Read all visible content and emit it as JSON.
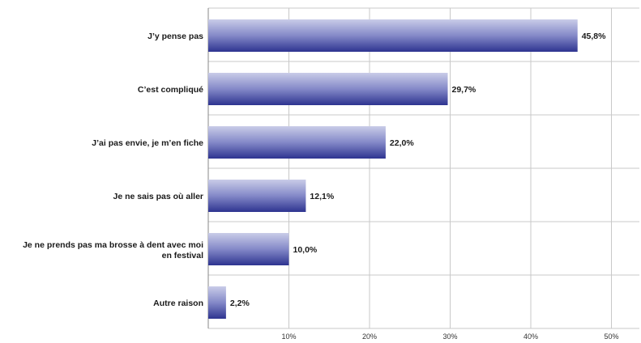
{
  "chart_data": {
    "type": "bar",
    "orientation": "horizontal",
    "categories": [
      "J’y pense pas",
      "C’est compliqué",
      "J’ai pas envie, je m’en fiche",
      "Je ne sais pas où aller",
      "Je ne prends pas ma brosse à dent avec moi en festival",
      "Autre raison"
    ],
    "values": [
      45.8,
      29.7,
      22.0,
      12.1,
      10.0,
      2.2
    ],
    "value_labels": [
      "45,8%",
      "29,7%",
      "22,0%",
      "12,1%",
      "10,0%",
      "2,2%"
    ],
    "xlim": [
      0,
      53
    ],
    "x_ticks": [
      10,
      20,
      30,
      40,
      50
    ],
    "x_tick_labels": [
      "10%",
      "20%",
      "30%",
      "40%",
      "50%"
    ],
    "grid": true,
    "legend": "none",
    "bar_gradient": {
      "top": "#c9cce8",
      "middle": "#8489c8",
      "bottom": "#2e3490"
    }
  }
}
